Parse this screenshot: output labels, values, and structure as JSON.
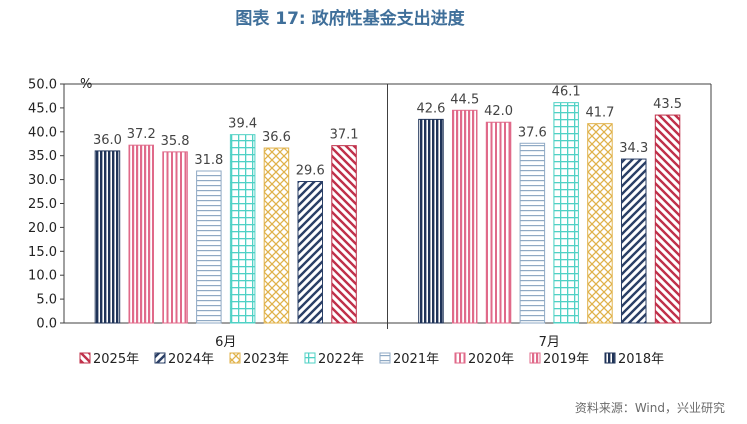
{
  "title": "图表 17: 政府性基金支出进度",
  "source": "资料来源：Wind，兴业研究",
  "chart_data": {
    "type": "bar",
    "title": "图表 17: 政府性基金支出进度",
    "ylabel": "%",
    "ylim": [
      0,
      50
    ],
    "yticks": [
      "0.0",
      "5.0",
      "10.0",
      "15.0",
      "20.0",
      "25.0",
      "30.0",
      "35.0",
      "40.0",
      "45.0",
      "50.0"
    ],
    "categories": [
      "6月",
      "7月"
    ],
    "series": [
      {
        "name": "2018年",
        "values": [
          36.0,
          42.6
        ],
        "color": "#1f3358",
        "pattern": "vertical-dense"
      },
      {
        "name": "2019年",
        "values": [
          37.2,
          44.5
        ],
        "color": "#e06a8a",
        "pattern": "vertical"
      },
      {
        "name": "2020年",
        "values": [
          35.8,
          42.0
        ],
        "color": "#e06a8a",
        "pattern": "vertical-sparse"
      },
      {
        "name": "2021年",
        "values": [
          31.8,
          37.6
        ],
        "color": "#8fa9c4",
        "pattern": "horizontal"
      },
      {
        "name": "2022年",
        "values": [
          39.4,
          46.1
        ],
        "color": "#4fd1c5",
        "pattern": "grid"
      },
      {
        "name": "2023年",
        "values": [
          36.6,
          41.7
        ],
        "color": "#e0b24a",
        "pattern": "cross"
      },
      {
        "name": "2024年",
        "values": [
          29.6,
          34.3
        ],
        "color": "#2a3f66",
        "pattern": "diag-left"
      },
      {
        "name": "2025年",
        "values": [
          37.1,
          43.5
        ],
        "color": "#c0304a",
        "pattern": "diag-right"
      }
    ],
    "legend": [
      "2025年",
      "2024年",
      "2023年",
      "2022年",
      "2021年",
      "2020年",
      "2019年",
      "2018年"
    ],
    "legend_position": "bottom"
  }
}
